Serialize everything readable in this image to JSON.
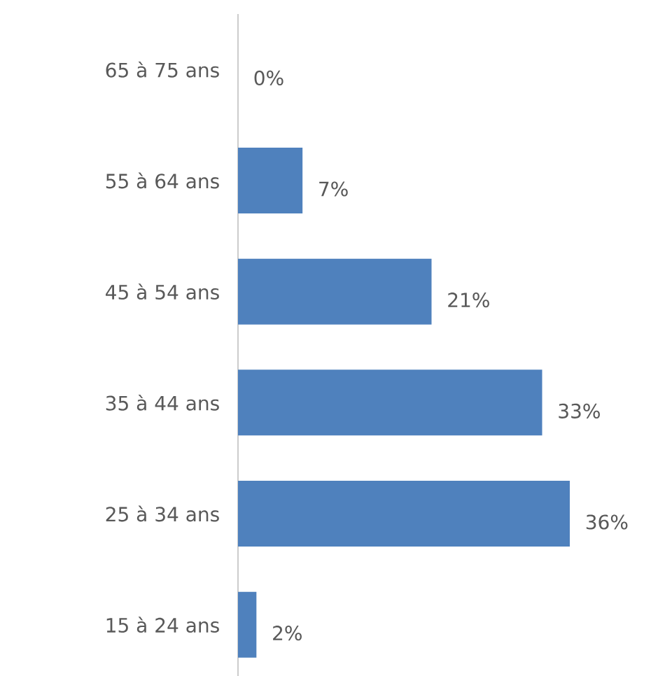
{
  "chart_data": {
    "type": "bar",
    "orientation": "horizontal",
    "color": "#4f81bd",
    "categories": [
      "65 à 75 ans",
      "55 à 64 ans",
      "45 à 54 ans",
      "35 à 44 ans",
      "25 à 34 ans",
      "15 à 24 ans"
    ],
    "values": [
      0,
      7,
      21,
      33,
      36,
      2
    ],
    "value_labels": [
      "0%",
      "7%",
      "21%",
      "33%",
      "36%",
      "2%"
    ]
  }
}
